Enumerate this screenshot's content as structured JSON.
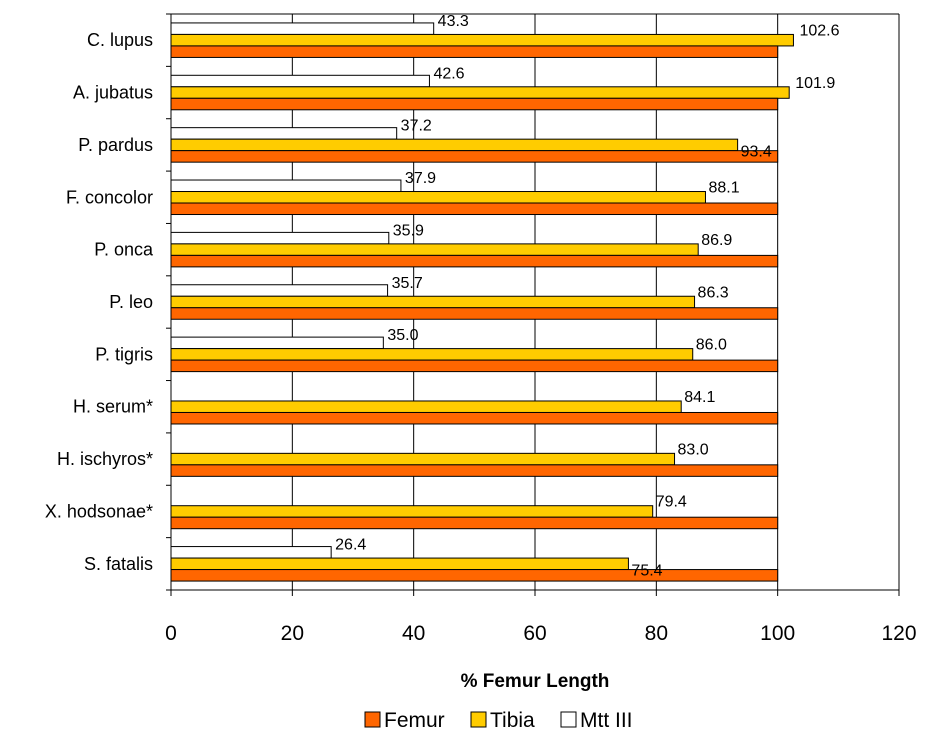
{
  "chart_data": {
    "type": "bar",
    "orientation": "horizontal",
    "categories": [
      "C. lupus",
      "A. jubatus",
      "P. pardus",
      "F. concolor",
      "P. onca",
      "P. leo",
      "P. tigris",
      "H. serum*",
      "H. ischyros*",
      "X. hodsonae*",
      "S. fatalis"
    ],
    "series": [
      {
        "name": "Femur",
        "color": "#FF6600",
        "values": [
          100,
          100,
          100,
          100,
          100,
          100,
          100,
          100,
          100,
          100,
          100
        ],
        "show_labels": false
      },
      {
        "name": "Tibia",
        "color": "#FFCC00",
        "values": [
          102.6,
          101.9,
          93.4,
          88.1,
          86.9,
          86.3,
          86.0,
          84.1,
          83.0,
          79.4,
          75.4
        ],
        "labels": [
          "102.6",
          "101.9",
          "93.4",
          "88.1",
          "86.9",
          "86.3",
          "86.0",
          "84.1",
          "83.0",
          "79.4",
          "75.4"
        ],
        "show_labels": true
      },
      {
        "name": "Mtt III",
        "color": "#FFFFFF",
        "values": [
          43.3,
          42.6,
          37.2,
          37.9,
          35.9,
          35.7,
          35.0,
          null,
          null,
          null,
          26.4
        ],
        "labels": [
          "43.3",
          "42.6",
          "37.2",
          "37.9",
          "35.9",
          "35.7",
          "35.0",
          "",
          "",
          "",
          "26.4"
        ],
        "show_labels": true
      }
    ],
    "xlabel": "% Femur Length",
    "ylabel": "",
    "xlim": [
      0,
      120
    ],
    "xticks": [
      0,
      20,
      40,
      60,
      80,
      100,
      120
    ],
    "grid": "vertical",
    "legend": "bottom",
    "legend_order": [
      "Femur",
      "Tibia",
      "Mtt III"
    ]
  }
}
